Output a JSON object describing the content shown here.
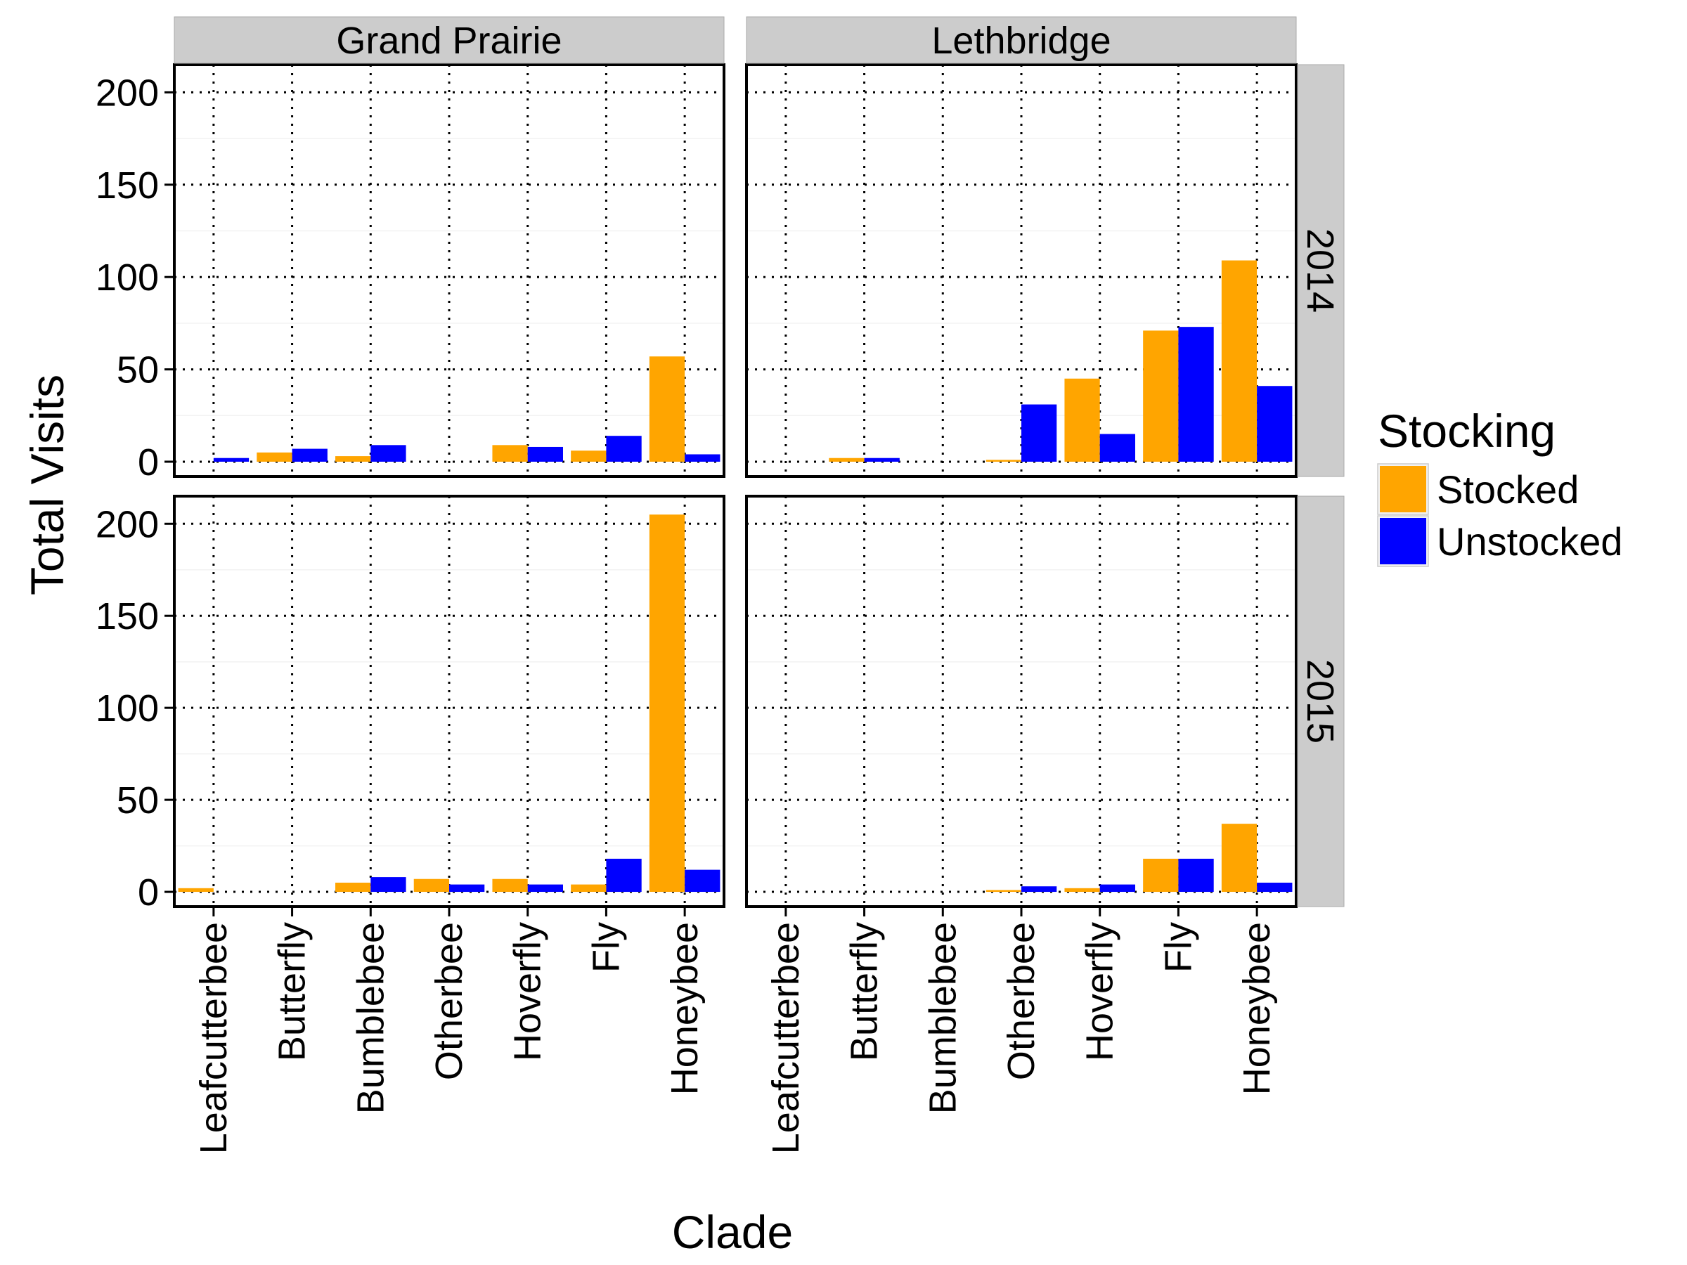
{
  "chart_data": {
    "type": "bar",
    "layout": "facet grid 2x2 (columns = site, rows = year)",
    "categories": [
      "Leafcutterbee",
      "Butterfly",
      "Bumblebee",
      "Otherbee",
      "Hoverfly",
      "Fly",
      "Honeybee"
    ],
    "xlabel": "Clade",
    "ylabel": "Total Visits",
    "ylim": [
      -8,
      215
    ],
    "yticks": [
      0,
      50,
      100,
      150,
      200
    ],
    "grid": true,
    "grid_style": "dotted",
    "facet_columns": [
      "Grand Prairie",
      "Lethbridge"
    ],
    "facet_rows": [
      "2014",
      "2015"
    ],
    "legend": {
      "title": "Stocking",
      "position": "right",
      "entries": [
        {
          "name": "Stocked",
          "color": "#FFA500"
        },
        {
          "name": "Unstocked",
          "color": "#0000FF"
        }
      ]
    },
    "panels": [
      {
        "column": "Grand Prairie",
        "row": "2014",
        "series": [
          {
            "name": "Stocked",
            "values": [
              0,
              5,
              3,
              0,
              9,
              6,
              57
            ]
          },
          {
            "name": "Unstocked",
            "values": [
              2,
              7,
              9,
              0,
              8,
              14,
              4
            ]
          }
        ]
      },
      {
        "column": "Lethbridge",
        "row": "2014",
        "series": [
          {
            "name": "Stocked",
            "values": [
              0,
              2,
              0,
              1,
              45,
              71,
              109
            ]
          },
          {
            "name": "Unstocked",
            "values": [
              0,
              2,
              0,
              31,
              15,
              73,
              41
            ]
          }
        ]
      },
      {
        "column": "Grand Prairie",
        "row": "2015",
        "series": [
          {
            "name": "Stocked",
            "values": [
              2,
              0,
              5,
              7,
              7,
              4,
              205
            ]
          },
          {
            "name": "Unstocked",
            "values": [
              0,
              0,
              8,
              4,
              4,
              18,
              12
            ]
          }
        ]
      },
      {
        "column": "Lethbridge",
        "row": "2015",
        "series": [
          {
            "name": "Stocked",
            "values": [
              0,
              0,
              0,
              1,
              2,
              18,
              37
            ]
          },
          {
            "name": "Unstocked",
            "values": [
              0,
              0,
              0,
              3,
              4,
              18,
              5
            ]
          }
        ]
      }
    ]
  }
}
